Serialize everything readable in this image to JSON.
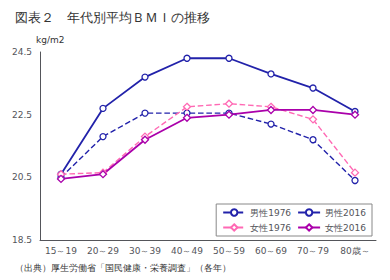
{
  "chart_data": {
    "type": "line",
    "title": "図表２　年代別平均ＢＭＩの推移",
    "annotations": [
      "（出典）厚生労働省「国民健康・栄養調査」（各年）"
    ],
    "ylabel": "kg/m2",
    "categories": [
      "15～19",
      "20～29",
      "30～39",
      "40～49",
      "50～59",
      "60～69",
      "70～79",
      "80歳～"
    ],
    "series": [
      {
        "name": "男性1976",
        "color": "#2222AA",
        "line_style": "dashed",
        "marker": "circle",
        "values": [
          20.5,
          21.8,
          22.55,
          22.55,
          22.55,
          22.2,
          21.7,
          20.4
        ]
      },
      {
        "name": "男性2016",
        "color": "#2222AA",
        "line_style": "solid",
        "marker": "circle",
        "values": [
          20.6,
          22.7,
          23.7,
          24.3,
          24.3,
          23.8,
          23.35,
          22.6
        ]
      },
      {
        "name": "女性1976",
        "color": "#FF69B4",
        "line_style": "dashed",
        "marker": "diamond",
        "values": [
          20.6,
          20.65,
          21.8,
          22.75,
          22.85,
          22.75,
          22.35,
          20.65
        ]
      },
      {
        "name": "女性2016",
        "color": "#AA00AA",
        "line_style": "solid",
        "marker": "diamond",
        "values": [
          20.45,
          20.6,
          21.7,
          22.4,
          22.5,
          22.65,
          22.65,
          22.5
        ]
      }
    ],
    "ylim": [
      18.5,
      24.5
    ],
    "yticks": [
      18.5,
      20.5,
      22.5,
      24.5
    ],
    "grid": false,
    "legend": "lower right"
  }
}
